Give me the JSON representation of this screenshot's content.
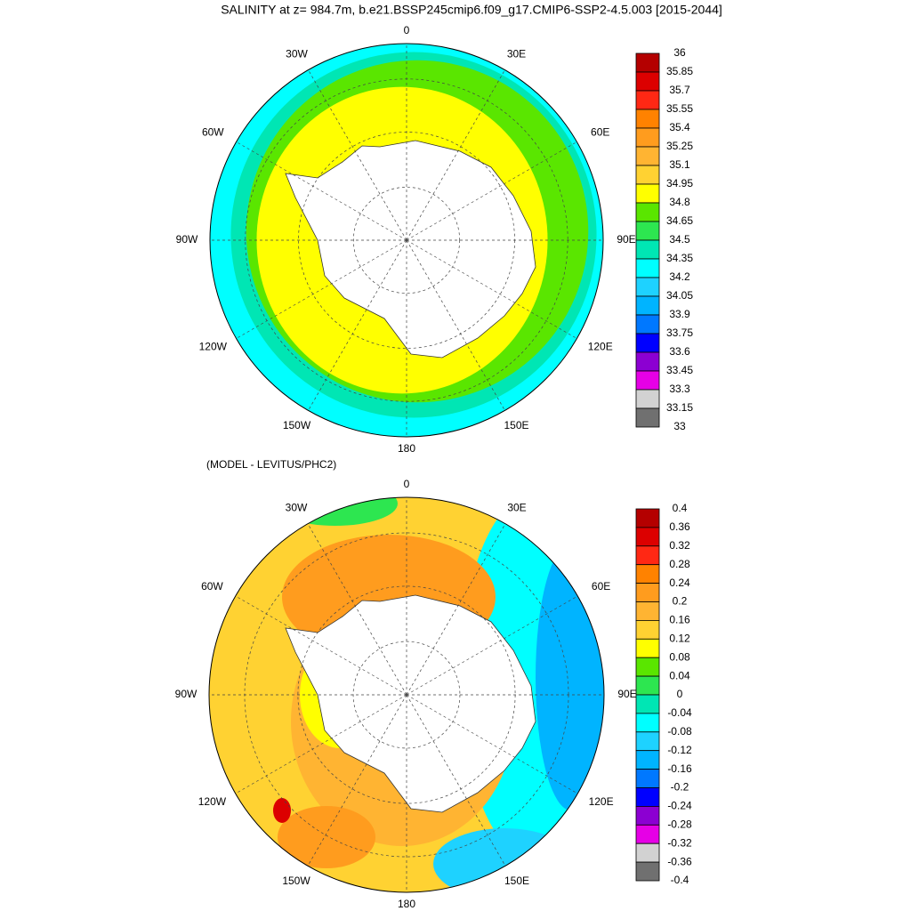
{
  "title": "SALINITY at z= 984.7m, b.e21.BSSP245cmip6.f09_g17.CMIP6-SSP2-4.5.003 [2015-2044]",
  "longitude_labels": [
    "0",
    "30E",
    "60E",
    "90E",
    "120E",
    "150E",
    "180",
    "150W",
    "120W",
    "90W",
    "60W",
    "30W"
  ],
  "maps": [
    {
      "colorbar": {
        "levels": [
          36,
          35.85,
          35.7,
          35.55,
          35.4,
          35.25,
          35.1,
          34.95,
          34.8,
          34.65,
          34.5,
          34.35,
          34.2,
          34.05,
          33.9,
          33.75,
          33.6,
          33.45,
          33.3,
          33.15,
          33
        ],
        "colors": [
          "#b40000",
          "#dc0000",
          "#ff2814",
          "#ff8200",
          "#ff9c1e",
          "#ffb432",
          "#ffd232",
          "#ffff00",
          "#5ae600",
          "#2de650",
          "#00e6b4",
          "#00ffff",
          "#1ed2ff",
          "#00b4ff",
          "#0078ff",
          "#0000ff",
          "#8c00d2",
          "#e600e6",
          "#d2d2d2",
          "#707070"
        ]
      }
    },
    {
      "subtitle": "(MODEL - LEVITUS/PHC2)",
      "colorbar": {
        "levels": [
          0.4,
          0.36,
          0.32,
          0.28,
          0.24,
          0.2,
          0.16,
          0.12,
          0.08,
          0.04,
          0,
          -0.04,
          -0.08,
          -0.12,
          -0.16,
          -0.2,
          -0.24,
          -0.28,
          -0.32,
          -0.36,
          -0.4
        ],
        "colors": [
          "#b40000",
          "#dc0000",
          "#ff2814",
          "#ff8200",
          "#ff9c1e",
          "#ffb432",
          "#ffd232",
          "#ffff00",
          "#5ae600",
          "#2de650",
          "#00e6b4",
          "#00ffff",
          "#1ed2ff",
          "#00b4ff",
          "#0078ff",
          "#0000ff",
          "#8c00d2",
          "#e600e6",
          "#d2d2d2",
          "#707070"
        ]
      }
    }
  ]
}
